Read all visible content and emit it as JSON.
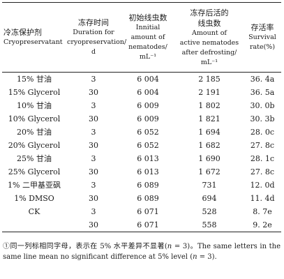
{
  "table": {
    "headers": {
      "agent_zh": "冷冻保护剂",
      "agent_en": "Cryopreservatant",
      "duration_zh": "冻存时间",
      "duration_en_1": "Duration for",
      "duration_en_2": "cryopreservation/",
      "duration_en_3": "d",
      "initial_zh": "初始线虫数",
      "initial_en_1": "Innitial",
      "initial_en_2": "amount of",
      "initial_en_3": "nematodes/",
      "initial_en_4": "mL⁻¹",
      "active_zh_1": "冻存后活的",
      "active_zh_2": "线虫数",
      "active_en_1": "Amount of",
      "active_en_2": "active nematodes",
      "active_en_3": "after defrosting/",
      "active_en_4": "mL⁻¹",
      "rate_zh": "存活率",
      "rate_en_1": "Survival",
      "rate_en_2": "rate(%)"
    },
    "rows": [
      {
        "agent": "15% 甘油",
        "duration": "3",
        "initial": "6 004",
        "active": "2 185",
        "rate": "36. 4a"
      },
      {
        "agent": "15%  Glycerol",
        "duration": "30",
        "initial": "6 004",
        "active": "2 191",
        "rate": "36. 5a"
      },
      {
        "agent": "10% 甘油",
        "duration": "3",
        "initial": "6 009",
        "active": "1 802",
        "rate": "30. 0b"
      },
      {
        "agent": "10% Glycerol",
        "duration": "30",
        "initial": "6 009",
        "active": "1 821",
        "rate": "30. 3b"
      },
      {
        "agent": "20% 甘油",
        "duration": "3",
        "initial": "6 052",
        "active": "1 694",
        "rate": "28. 0c"
      },
      {
        "agent": "20% Glycerol",
        "duration": "30",
        "initial": "6 052",
        "active": "1 682",
        "rate": "27. 8c"
      },
      {
        "agent": "25% 甘油",
        "duration": "3",
        "initial": "6 013",
        "active": "1 690",
        "rate": "28. 1c"
      },
      {
        "agent": "25% Glycerol",
        "duration": "30",
        "initial": "6 013",
        "active": "1 672",
        "rate": "27. 8c"
      },
      {
        "agent": "1% 二甲基亚砜",
        "duration": "3",
        "initial": "6 089",
        "active": "731",
        "rate": "12. 0d"
      },
      {
        "agent": "1% DMSO",
        "duration": "30",
        "initial": "6 089",
        "active": "694",
        "rate": "11. 4d"
      },
      {
        "agent": "CK",
        "duration": "3",
        "initial": "6 071",
        "active": "528",
        "rate": "8. 7e"
      },
      {
        "agent": "",
        "duration": "30",
        "initial": "6 071",
        "active": "558",
        "rate": "9. 2e"
      }
    ]
  },
  "note": {
    "zh_prefix": "①同一列标相同字母，表示在 5% 水平差异不显著(",
    "zh_n": "n",
    "zh_suffix": " = 3)。",
    "en_prefix": "The same letters in the same line mean no significant difference at 5%  level (",
    "en_n": "n",
    "en_suffix": " = 3)."
  }
}
